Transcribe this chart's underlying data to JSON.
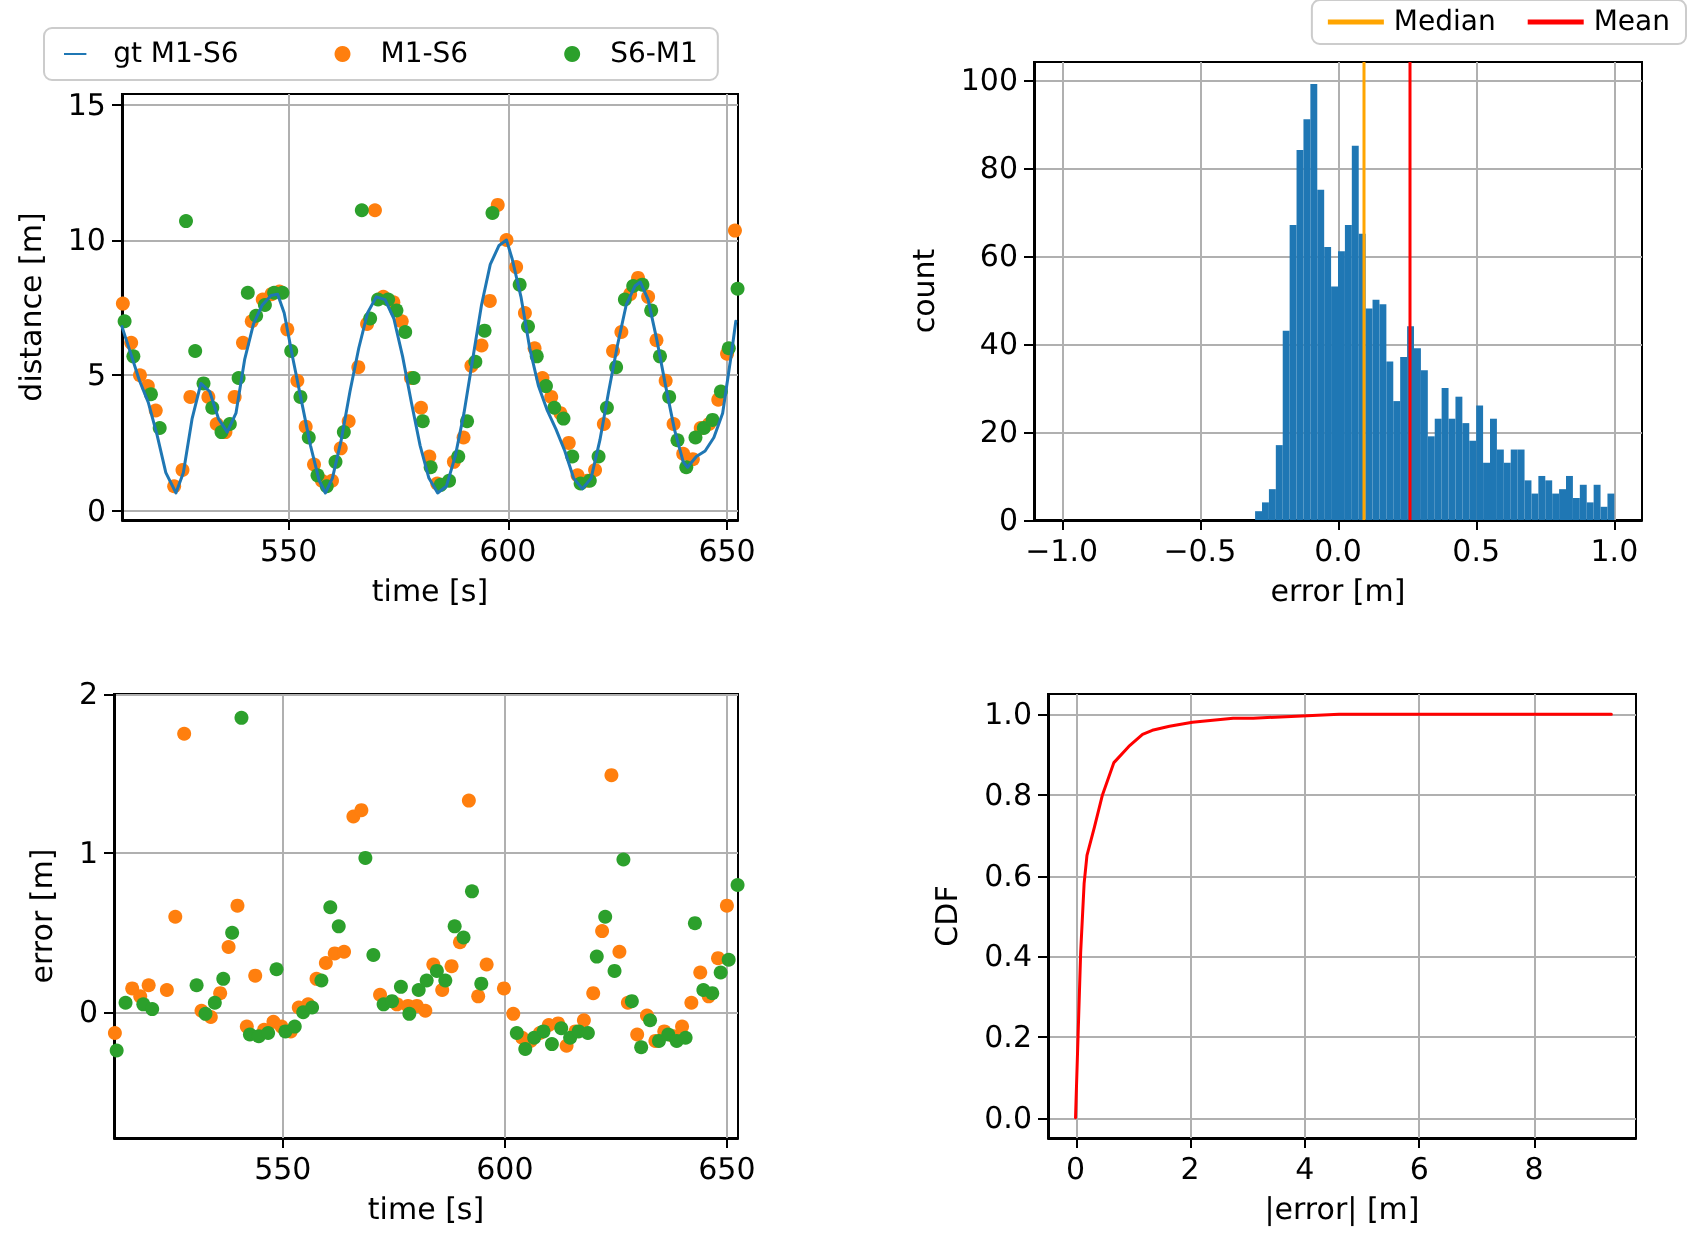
{
  "chart_data": [
    {
      "type": "scatter",
      "xlabel": "time [s]",
      "ylabel": "distance [m]",
      "xlim": [
        512,
        652.5
      ],
      "ylim": [
        -0.35,
        15.4
      ],
      "xticks": [
        550,
        600,
        650
      ],
      "yticks": [
        0,
        5,
        10,
        15
      ],
      "grid": true,
      "legend": "top",
      "marker": "circle",
      "series": [
        {
          "name": "gt M1-S6",
          "type": "line",
          "marker": "none",
          "color": "#1f77b4",
          "x": [
            512,
            514,
            516,
            518,
            520,
            522,
            524.3,
            526,
            528,
            530,
            532,
            534,
            536,
            538,
            540,
            542,
            544,
            546,
            547.5,
            549,
            551,
            553,
            555,
            557,
            558.4,
            560,
            562,
            564,
            566,
            568,
            570,
            572,
            574,
            576,
            578,
            580,
            582,
            584,
            586,
            588,
            590,
            592,
            594,
            596,
            598,
            599.7,
            601,
            603,
            605,
            607,
            609,
            611,
            613,
            615,
            617,
            619,
            621,
            623,
            625,
            627,
            629,
            630.2,
            632,
            634,
            636,
            638,
            640,
            641,
            643,
            645,
            647,
            649,
            651,
            652
          ],
          "values": [
            6.8,
            5.8,
            4.8,
            4.0,
            2.8,
            1.4,
            0.65,
            1.4,
            3.4,
            4.7,
            4.4,
            3.4,
            2.9,
            3.6,
            5.6,
            6.9,
            7.6,
            7.95,
            8.0,
            7.3,
            5.6,
            4.0,
            2.4,
            1.1,
            0.65,
            1.2,
            2.6,
            4.4,
            6.0,
            7.3,
            7.9,
            7.8,
            7.1,
            5.7,
            4.0,
            2.4,
            1.2,
            0.65,
            0.9,
            2.0,
            3.6,
            5.6,
            7.6,
            9.1,
            9.8,
            10.0,
            9.3,
            7.9,
            6.0,
            4.6,
            3.7,
            3.0,
            2.2,
            1.2,
            0.8,
            1.2,
            2.6,
            4.4,
            6.1,
            7.6,
            8.3,
            8.45,
            7.8,
            6.3,
            4.6,
            3.0,
            1.8,
            1.6,
            2.0,
            2.2,
            2.7,
            3.6,
            5.8,
            7.0
          ]
        },
        {
          "name": "M1-S6",
          "color": "#ff7f0e",
          "x": [
            512.2,
            514.1,
            516.1,
            517.9,
            519.7,
            523.9,
            525.8,
            527.6,
            531.7,
            533.6,
            535.6,
            537.7,
            539.6,
            541.6,
            544.1,
            546.1,
            547.9,
            549.7,
            552.0,
            553.9,
            555.8,
            557.6,
            559.9,
            561.9,
            563.7,
            565.9,
            567.9,
            569.7,
            571.6,
            573.9,
            575.8,
            577.9,
            580.2,
            582.1,
            583.9,
            587.7,
            589.9,
            591.7,
            594.0,
            595.9,
            597.7,
            599.7,
            601.9,
            603.9,
            606.1,
            607.9,
            609.9,
            612.0,
            613.9,
            615.9,
            618.1,
            619.9,
            621.9,
            624.0,
            625.9,
            627.9,
            629.7,
            632.0,
            633.9,
            636.0,
            637.8,
            640.0,
            642.2,
            644.0,
            645.9,
            648.0,
            650.0,
            651.8
          ],
          "values": [
            7.65,
            6.2,
            5.0,
            4.6,
            3.7,
            0.9,
            1.5,
            4.2,
            4.2,
            3.2,
            2.9,
            4.2,
            6.2,
            7.0,
            7.8,
            8.0,
            8.1,
            6.7,
            4.8,
            3.1,
            1.7,
            1.1,
            1.1,
            2.3,
            3.3,
            5.3,
            6.9,
            11.1,
            7.9,
            7.7,
            7.0,
            4.9,
            3.8,
            2.0,
            1.0,
            1.8,
            2.7,
            5.35,
            6.1,
            7.75,
            11.3,
            10.0,
            9.0,
            7.3,
            6.0,
            4.9,
            4.2,
            3.6,
            2.5,
            1.3,
            1.1,
            1.5,
            3.2,
            5.9,
            6.6,
            8.0,
            8.6,
            7.9,
            6.3,
            4.8,
            3.2,
            2.1,
            1.9,
            3.05,
            3.2,
            4.1,
            5.8,
            10.35
          ]
        },
        {
          "name": "S6-M1",
          "color": "#2ca02c",
          "x": [
            512.6,
            514.6,
            518.6,
            520.6,
            526.6,
            528.7,
            530.6,
            532.6,
            534.7,
            536.6,
            538.6,
            540.7,
            542.6,
            544.6,
            546.7,
            548.6,
            550.6,
            552.7,
            554.6,
            556.6,
            558.7,
            560.7,
            562.6,
            566.7,
            568.6,
            570.4,
            572.7,
            574.6,
            576.6,
            578.5,
            580.6,
            582.4,
            584.7,
            586.6,
            588.7,
            590.7,
            592.6,
            594.7,
            596.5,
            602.7,
            604.6,
            606.6,
            608.7,
            610.6,
            612.7,
            614.7,
            616.6,
            618.7,
            620.7,
            622.6,
            624.7,
            626.7,
            628.6,
            630.7,
            632.7,
            634.7,
            636.8,
            638.7,
            640.7,
            642.8,
            644.7,
            646.7,
            648.6,
            650.4,
            652.4
          ],
          "values": [
            7.0,
            5.7,
            4.3,
            3.05,
            10.7,
            5.9,
            4.7,
            3.8,
            2.9,
            3.2,
            4.9,
            8.05,
            7.2,
            7.6,
            8.05,
            8.05,
            5.9,
            4.2,
            2.7,
            1.3,
            0.9,
            1.8,
            2.9,
            11.1,
            7.1,
            7.8,
            7.8,
            7.4,
            6.6,
            4.9,
            3.3,
            1.6,
            0.95,
            1.1,
            2.0,
            3.3,
            5.5,
            6.65,
            11.0,
            8.35,
            6.8,
            5.7,
            4.6,
            3.8,
            3.4,
            2.0,
            1.0,
            1.1,
            2.0,
            3.8,
            5.3,
            7.8,
            8.3,
            8.35,
            7.4,
            5.7,
            4.2,
            2.6,
            1.6,
            2.7,
            3.05,
            3.35,
            4.4,
            6.0,
            8.2
          ]
        }
      ]
    },
    {
      "type": "histogram",
      "xlabel": "error [m]",
      "ylabel": "count",
      "xlim": [
        -1.1,
        1.1
      ],
      "ylim": [
        0,
        104
      ],
      "xticks": [
        {
          "value": -1,
          "label": "−1.0"
        },
        {
          "value": -0.5,
          "label": "−0.5"
        },
        {
          "value": 0,
          "label": "0.0"
        },
        0.5,
        {
          "value": 1,
          "label": "1.0"
        }
      ],
      "yticks": [
        0,
        20,
        40,
        60,
        80,
        100
      ],
      "grid": true,
      "legend": "top right",
      "color": "#1f77b4",
      "bins": [
        -0.3,
        -0.275,
        -0.25,
        -0.225,
        -0.2,
        -0.175,
        -0.15,
        -0.125,
        -0.1,
        -0.075,
        -0.05,
        -0.025,
        0,
        0.025,
        0.05,
        0.075,
        0.1,
        0.125,
        0.15,
        0.175,
        0.2,
        0.225,
        0.25,
        0.275,
        0.3,
        0.325,
        0.35,
        0.375,
        0.4,
        0.425,
        0.45,
        0.475,
        0.5,
        0.525,
        0.55,
        0.575,
        0.6,
        0.625,
        0.65,
        0.675,
        0.7,
        0.725,
        0.75,
        0.775,
        0.8,
        0.825,
        0.85,
        0.875,
        0.9,
        0.925,
        0.95,
        0.975,
        1.0
      ],
      "values": [
        2,
        4,
        7,
        17,
        43,
        67,
        84,
        91,
        99,
        75,
        62,
        53,
        61,
        67,
        85,
        65,
        48,
        50,
        49,
        36,
        27,
        37,
        44,
        39,
        34,
        19,
        23,
        30,
        23,
        28,
        22,
        18,
        26,
        13,
        23,
        16,
        13,
        16,
        16,
        9,
        6,
        10,
        9,
        6,
        7,
        10,
        5,
        8,
        4,
        8,
        3,
        6
      ],
      "ref_lines": [
        {
          "axis": "x",
          "value": 0.09,
          "label": "Median",
          "color": "#ffa500"
        },
        {
          "axis": "x",
          "value": 0.26,
          "label": "Mean",
          "color": "#ff0000"
        }
      ]
    },
    {
      "type": "scatter",
      "xlabel": "time [s]",
      "ylabel": "error [m]",
      "xlim": [
        512,
        652.5
      ],
      "ylim": [
        -0.79,
        2.0
      ],
      "xticks": [
        550,
        600,
        650
      ],
      "yticks": [
        0,
        1,
        2
      ],
      "grid": true,
      "marker": "circle",
      "series": [
        {
          "color": "#ff7f0e",
          "x": [
            512.2,
            516.1,
            517.9,
            519.8,
            523.9,
            525.8,
            527.8,
            531.7,
            533.8,
            535.9,
            537.8,
            539.8,
            541.9,
            543.8,
            545.8,
            547.9,
            549.7,
            551.8,
            553.6,
            555.7,
            557.6,
            559.7,
            561.7,
            563.8,
            565.9,
            567.7,
            571.9,
            575.7,
            578.2,
            580.2,
            582.1,
            583.9,
            585.9,
            588.0,
            589.9,
            591.9,
            594.0,
            595.9,
            599.8,
            601.9,
            603.9,
            605.8,
            607.9,
            609.9,
            612.0,
            613.9,
            615.9,
            617.8,
            619.9,
            621.9,
            624.0,
            625.8,
            627.7,
            629.8,
            632.0,
            633.9,
            635.9,
            638.0,
            639.9,
            642.0,
            644.0,
            645.9,
            648.0,
            650.0
          ],
          "values": [
            -0.13,
            0.15,
            0.1,
            0.17,
            0.14,
            0.6,
            1.75,
            0.01,
            -0.03,
            0.12,
            0.41,
            0.67,
            -0.09,
            0.23,
            -0.11,
            -0.06,
            -0.09,
            -0.12,
            0.03,
            0.05,
            0.21,
            0.31,
            0.37,
            0.38,
            1.23,
            1.27,
            0.11,
            0.05,
            0.04,
            0.04,
            0.01,
            0.3,
            0.14,
            0.29,
            0.44,
            1.33,
            0.1,
            0.3,
            0.15,
            -0.01,
            -0.16,
            -0.18,
            -0.13,
            -0.08,
            -0.07,
            -0.21,
            -0.12,
            -0.05,
            0.12,
            0.51,
            1.49,
            0.38,
            0.06,
            -0.14,
            -0.02,
            -0.18,
            -0.12,
            -0.15,
            -0.09,
            0.06,
            0.25,
            0.1,
            0.34,
            0.67
          ]
        },
        {
          "color": "#2ca02c",
          "x": [
            512.6,
            514.6,
            518.6,
            520.6,
            530.6,
            532.6,
            534.7,
            536.6,
            538.6,
            540.7,
            542.6,
            544.6,
            546.7,
            548.6,
            550.6,
            552.7,
            554.6,
            556.6,
            558.7,
            560.7,
            562.6,
            568.6,
            570.4,
            572.7,
            574.6,
            576.6,
            578.5,
            580.6,
            582.4,
            584.7,
            586.6,
            588.7,
            590.7,
            592.6,
            594.7,
            602.7,
            604.6,
            606.6,
            608.7,
            610.6,
            612.7,
            614.7,
            616.6,
            618.7,
            620.7,
            622.6,
            624.7,
            626.7,
            628.6,
            630.7,
            632.7,
            634.7,
            636.8,
            638.7,
            640.7,
            642.8,
            644.7,
            646.7,
            648.6,
            650.4,
            652.4
          ],
          "values": [
            -0.24,
            0.06,
            0.05,
            0.02,
            0.17,
            -0.01,
            0.06,
            0.21,
            0.5,
            1.85,
            -0.14,
            -0.15,
            -0.13,
            0.27,
            -0.12,
            -0.09,
            0.0,
            0.03,
            0.2,
            0.66,
            0.54,
            0.97,
            0.36,
            0.05,
            0.07,
            0.16,
            -0.01,
            0.14,
            0.2,
            0.26,
            0.2,
            0.54,
            0.47,
            0.76,
            0.18,
            -0.13,
            -0.23,
            -0.16,
            -0.12,
            -0.2,
            -0.1,
            -0.16,
            -0.12,
            -0.13,
            0.35,
            0.6,
            0.26,
            0.96,
            0.07,
            -0.22,
            -0.05,
            -0.18,
            -0.14,
            -0.18,
            -0.16,
            0.56,
            0.14,
            0.12,
            0.25,
            0.33,
            0.8
          ]
        }
      ]
    },
    {
      "type": "line",
      "xlabel": "|error| [m]",
      "ylabel": "CDF",
      "xlim": [
        -0.48,
        9.78
      ],
      "ylim": [
        -0.05,
        1.05
      ],
      "xticks": [
        0,
        2,
        4,
        6,
        8
      ],
      "yticks": [
        {
          "value": 0,
          "label": "0.0"
        },
        0.2,
        0.4,
        0.6,
        0.8,
        {
          "value": 1,
          "label": "1.0"
        }
      ],
      "grid": true,
      "series": [
        {
          "color": "#ff0000",
          "x": [
            0,
            0.09,
            0.15,
            0.2,
            0.33,
            0.47,
            0.67,
            0.93,
            1.17,
            1.34,
            1.64,
            2.04,
            2.75,
            3.1,
            4.6,
            9.35
          ],
          "values": [
            0,
            0.41,
            0.58,
            0.65,
            0.72,
            0.8,
            0.88,
            0.92,
            0.95,
            0.96,
            0.97,
            0.98,
            0.99,
            0.99,
            1.0,
            1.0
          ]
        }
      ]
    }
  ]
}
